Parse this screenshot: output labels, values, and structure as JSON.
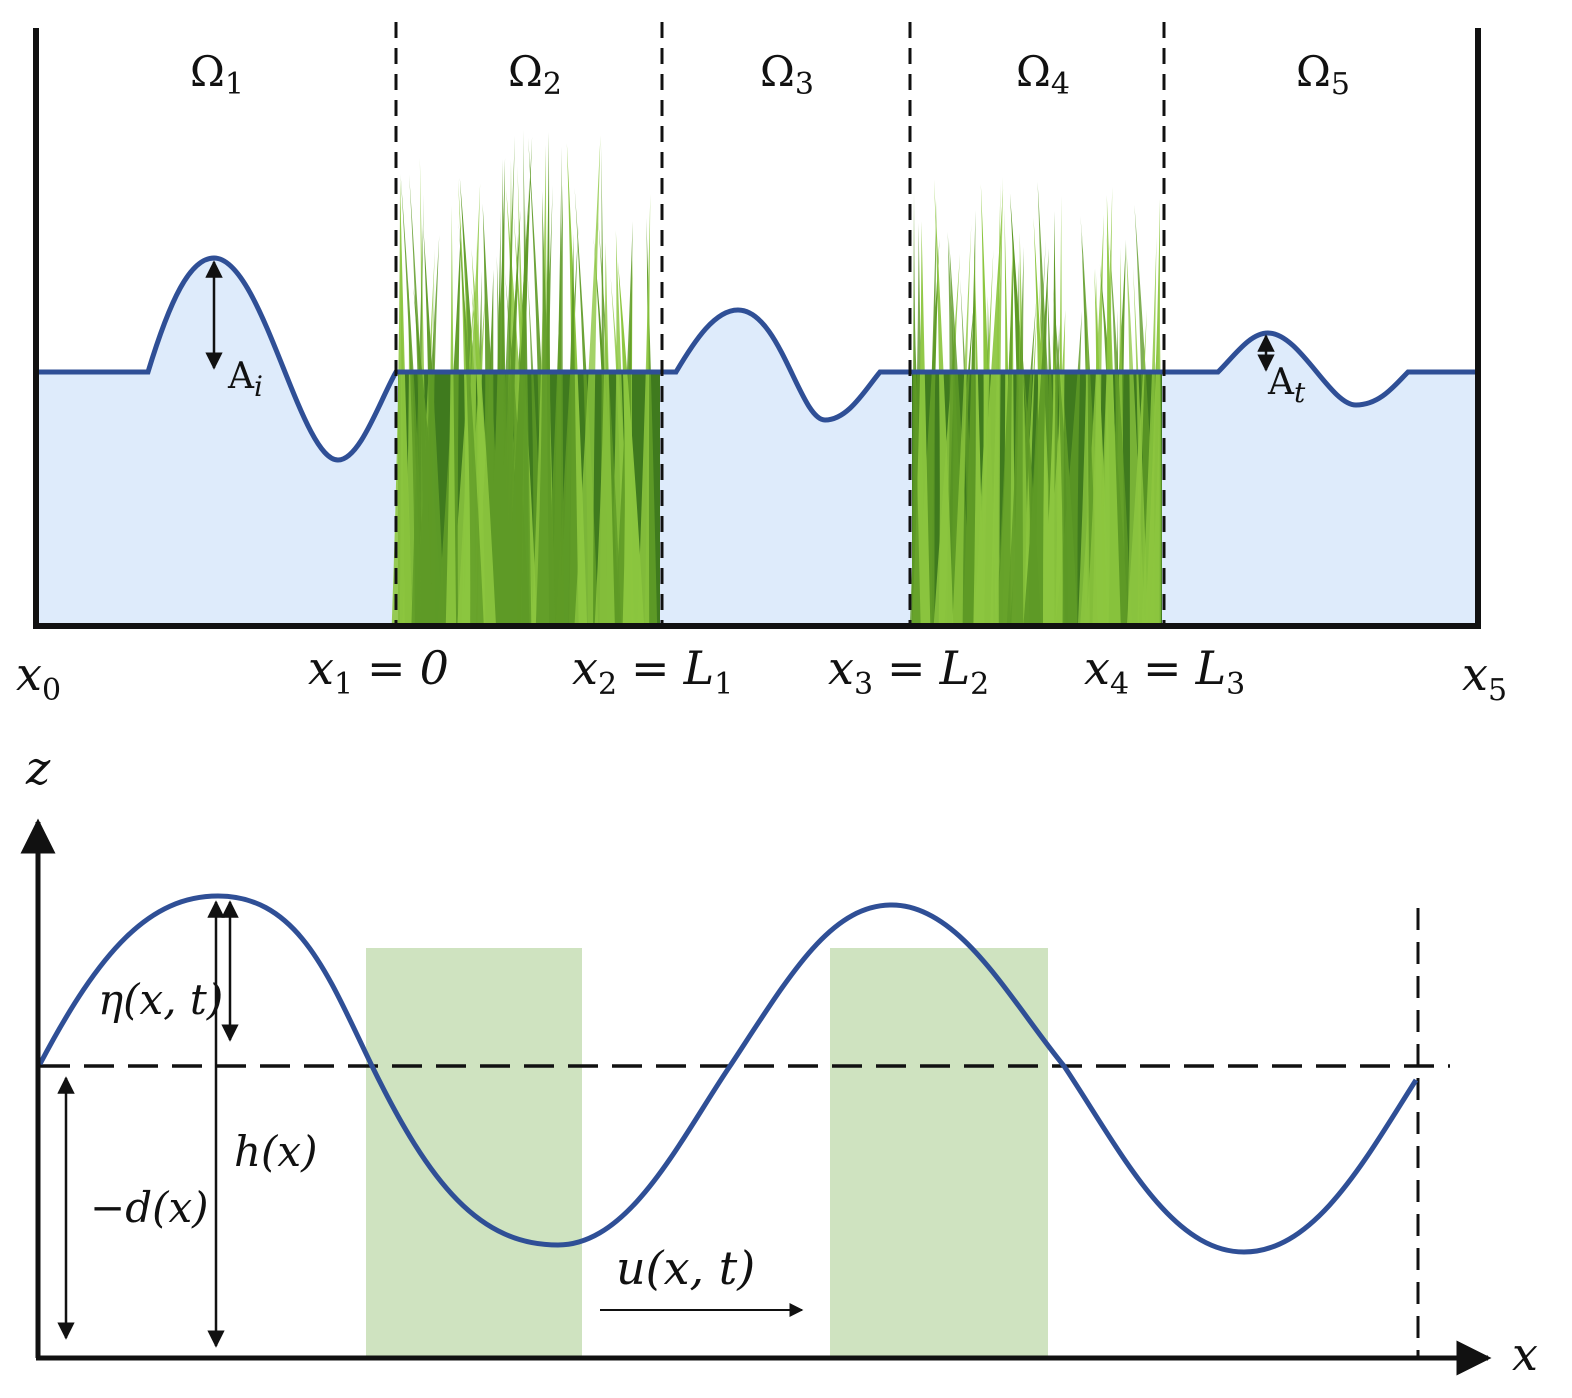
{
  "top_panel": {
    "domain_labels": [
      {
        "symbol": "Ω",
        "sub": "1"
      },
      {
        "symbol": "Ω",
        "sub": "2"
      },
      {
        "symbol": "Ω",
        "sub": "3"
      },
      {
        "symbol": "Ω",
        "sub": "4"
      },
      {
        "symbol": "Ω",
        "sub": "5"
      }
    ],
    "incident_amplitude": {
      "base": "A",
      "sub": "i"
    },
    "transmitted_amplitude": {
      "base": "A",
      "sub": "t"
    },
    "boundary_labels": [
      {
        "var": "x",
        "sub": "0",
        "rhs": "",
        "rhs_sub": ""
      },
      {
        "var": "x",
        "sub": "1",
        "rhs": "0",
        "rhs_sub": ""
      },
      {
        "var": "x",
        "sub": "2",
        "rhs": "L",
        "rhs_sub": "1"
      },
      {
        "var": "x",
        "sub": "3",
        "rhs": "L",
        "rhs_sub": "2"
      },
      {
        "var": "x",
        "sub": "4",
        "rhs": "L",
        "rhs_sub": "3"
      },
      {
        "var": "x",
        "sub": "5",
        "rhs": "",
        "rhs_sub": ""
      }
    ],
    "equals_sign": "=",
    "colors": {
      "water": "#deebfb",
      "wave": "#2f4f96",
      "grass_dark": "#3f7a1e",
      "grass_light": "#8cc63f"
    }
  },
  "bottom_panel": {
    "z_axis_label": "z",
    "x_axis_label": "x",
    "eta_label": "η(x, t)",
    "h_label": "h(x)",
    "d_label": "−d(x)",
    "u_label": "u(x, t)",
    "colors": {
      "wave": "#2f4f96",
      "vegetation": "#cfe3c0"
    }
  }
}
